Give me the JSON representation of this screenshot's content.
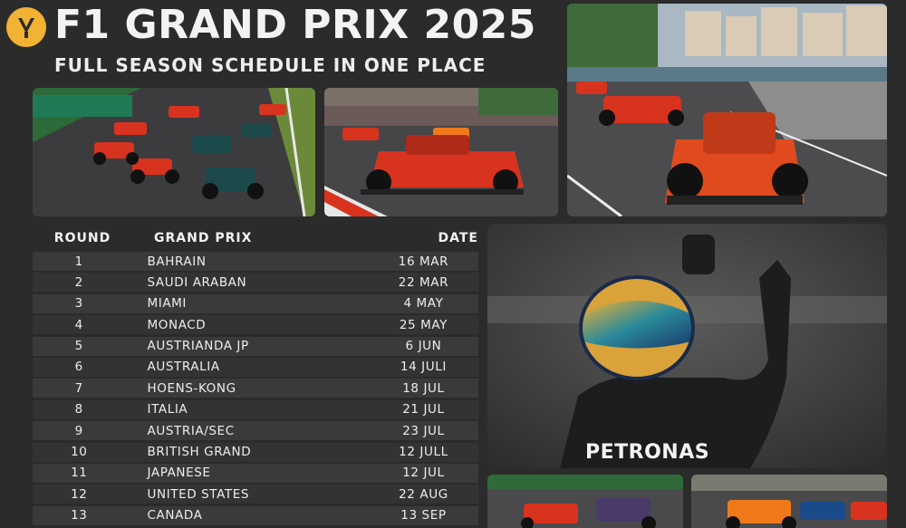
{
  "header": {
    "title": "F1 GRAND PRIX 2025",
    "subtitle": "FULL SEASON SCHEDULE IN ONE PLACE",
    "logo_icon": "f1-trophy-logo"
  },
  "schedule": {
    "columns": {
      "round": "ROUND",
      "grand_prix": "GRAND PRIX",
      "date": "DATE"
    },
    "rows": [
      {
        "round": "1",
        "gp": "BAHRAIN",
        "date": "16 MAR"
      },
      {
        "round": "2",
        "gp": "SAUDI ARABAN",
        "date": "22 MAR"
      },
      {
        "round": "3",
        "gp": "MIAMI",
        "date": "4 MAY"
      },
      {
        "round": "4",
        "gp": "MONACD",
        "date": "25 MAY"
      },
      {
        "round": "5",
        "gp": "AUSTRIANDA JP",
        "date": "6 JUN"
      },
      {
        "round": "6",
        "gp": "AUSTRALIA",
        "date": "14 JULI"
      },
      {
        "round": "7",
        "gp": "HOENS-KONG",
        "date": "18 JUL"
      },
      {
        "round": "8",
        "gp": "ITALIA",
        "date": "21 JUL"
      },
      {
        "round": "9",
        "gp": "AUSTRIA/SEC",
        "date": "23 JUL"
      },
      {
        "round": "10",
        "gp": "BRITISH GRAND",
        "date": "12 JULL"
      },
      {
        "round": "11",
        "gp": "JAPANESE",
        "date": "12 JUL"
      },
      {
        "round": "12",
        "gp": "UNITED STATES",
        "date": "22 AUG"
      },
      {
        "round": "13",
        "gp": "CANADA",
        "date": "13 SEP"
      }
    ]
  },
  "driver_photo": {
    "sponsor_text": "PETRONAS"
  },
  "colors": {
    "background": "#2b2b2b",
    "row": "#3a3a3a",
    "ferrari_red": "#d8331f",
    "mclaren_orange": "#f07a1a",
    "logo_gold": "#f2b233"
  }
}
